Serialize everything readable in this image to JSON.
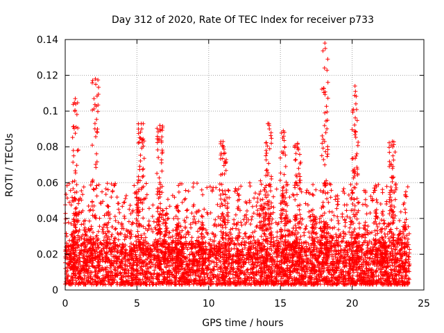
{
  "chart_data": {
    "type": "scatter",
    "title": "Day 312 of 2020, Rate Of TEC Index for receiver p733",
    "xlabel": "GPS time / hours",
    "ylabel": "ROTI / TECUs",
    "xlim": [
      0,
      25
    ],
    "ylim": [
      0,
      0.14
    ],
    "x_ticks": [
      0,
      5,
      10,
      15,
      20,
      25
    ],
    "y_ticks": [
      0,
      0.02,
      0.04,
      0.06,
      0.08,
      0.1,
      0.12,
      0.14
    ],
    "x_tick_labels": [
      "0",
      "5",
      "10",
      "15",
      "20",
      "25"
    ],
    "y_tick_labels": [
      "0",
      "0.02",
      "0.04",
      "0.06",
      "0.08",
      "0.1",
      "0.12",
      "0.14"
    ],
    "grid": true,
    "marker": "+",
    "color": "#ff0000",
    "data_time_range_hours": [
      0,
      24
    ],
    "baseline_range": [
      0.003,
      0.02
    ],
    "peaks": [
      {
        "x": 0.7,
        "y": 0.107
      },
      {
        "x": 2.1,
        "y": 0.118
      },
      {
        "x": 5.3,
        "y": 0.093
      },
      {
        "x": 6.6,
        "y": 0.092
      },
      {
        "x": 11.0,
        "y": 0.083
      },
      {
        "x": 14.2,
        "y": 0.093
      },
      {
        "x": 15.2,
        "y": 0.089
      },
      {
        "x": 16.2,
        "y": 0.082
      },
      {
        "x": 18.1,
        "y": 0.138
      },
      {
        "x": 20.2,
        "y": 0.114
      },
      {
        "x": 22.8,
        "y": 0.083
      }
    ]
  }
}
